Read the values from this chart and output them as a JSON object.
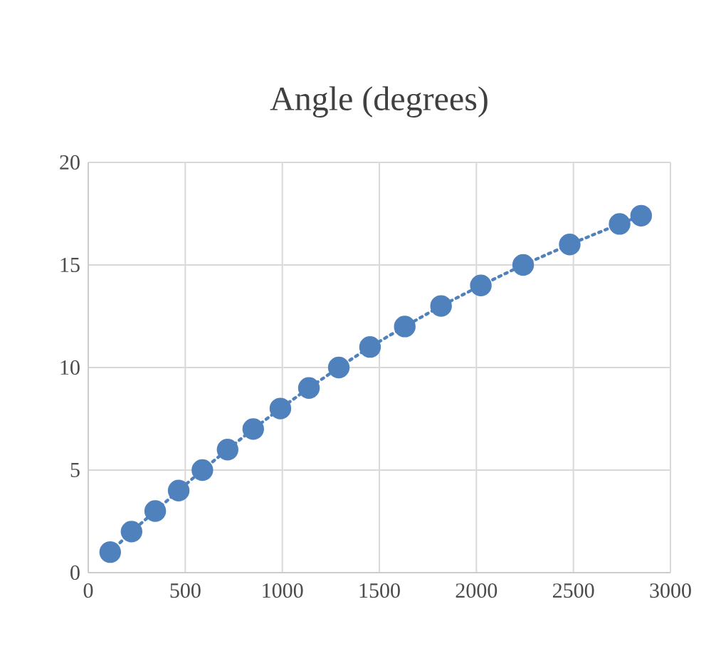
{
  "chart_data": {
    "type": "line",
    "title": "Angle (degrees)",
    "x": [
      113,
      223,
      345,
      466,
      588,
      718,
      850,
      990,
      1137,
      1291,
      1452,
      1631,
      1818,
      2023,
      2241,
      2481,
      2738,
      2849
    ],
    "series": [
      {
        "color": "#4f81bd",
        "values": [
          1,
          2,
          3,
          4,
          5,
          6,
          7,
          8,
          9,
          10,
          11,
          12,
          13,
          14,
          15,
          16,
          17,
          17.4
        ]
      }
    ],
    "xlim": [
      0,
      3000
    ],
    "xticks": [
      0,
      500,
      1000,
      1500,
      2000,
      2500,
      3000
    ],
    "ylim": [
      0,
      20
    ],
    "yticks": [
      0,
      5,
      10,
      15,
      20
    ],
    "grid": true,
    "marker": "circle",
    "line_style": "dotted"
  }
}
